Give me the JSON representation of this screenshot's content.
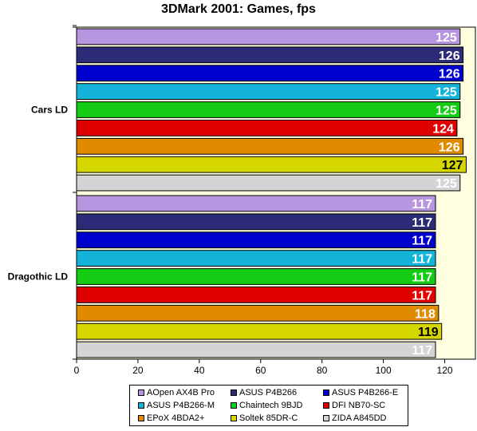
{
  "chart_data": {
    "type": "bar",
    "orientation": "horizontal",
    "title": "3DMark 2001: Games, fps",
    "categories": [
      "Cars LD",
      "Dragothic LD"
    ],
    "xlim": [
      0,
      130
    ],
    "xticks": [
      0,
      20,
      40,
      60,
      80,
      100,
      120
    ],
    "grid": false,
    "legend_position": "bottom",
    "series": [
      {
        "name": "AOpen AX4B Pro",
        "color": "#b795e0",
        "values": [
          125,
          117
        ]
      },
      {
        "name": "ASUS P4B266",
        "color": "#2b2b78",
        "values": [
          126,
          117
        ]
      },
      {
        "name": "ASUS P4B266-E",
        "color": "#0000cc",
        "values": [
          126,
          117
        ]
      },
      {
        "name": "ASUS P4B266-M",
        "color": "#14b4da",
        "values": [
          125,
          117
        ]
      },
      {
        "name": "Chaintech 9BJD",
        "color": "#14cc14",
        "values": [
          125,
          117
        ]
      },
      {
        "name": "DFI NB70-SC",
        "color": "#e00000",
        "values": [
          124,
          117
        ]
      },
      {
        "name": "EPoX 4BDA2+",
        "color": "#e08a00",
        "values": [
          126,
          118
        ]
      },
      {
        "name": "Soltek 85DR-C",
        "color": "#d6d600",
        "values": [
          127,
          119
        ]
      },
      {
        "name": "ZIDA A845DD",
        "color": "#d4d4d4",
        "values": [
          125,
          117
        ]
      }
    ],
    "colors": {
      "plot_background": "#ffffe0",
      "label_light": "#ffffff",
      "label_dark": "#000000"
    }
  }
}
